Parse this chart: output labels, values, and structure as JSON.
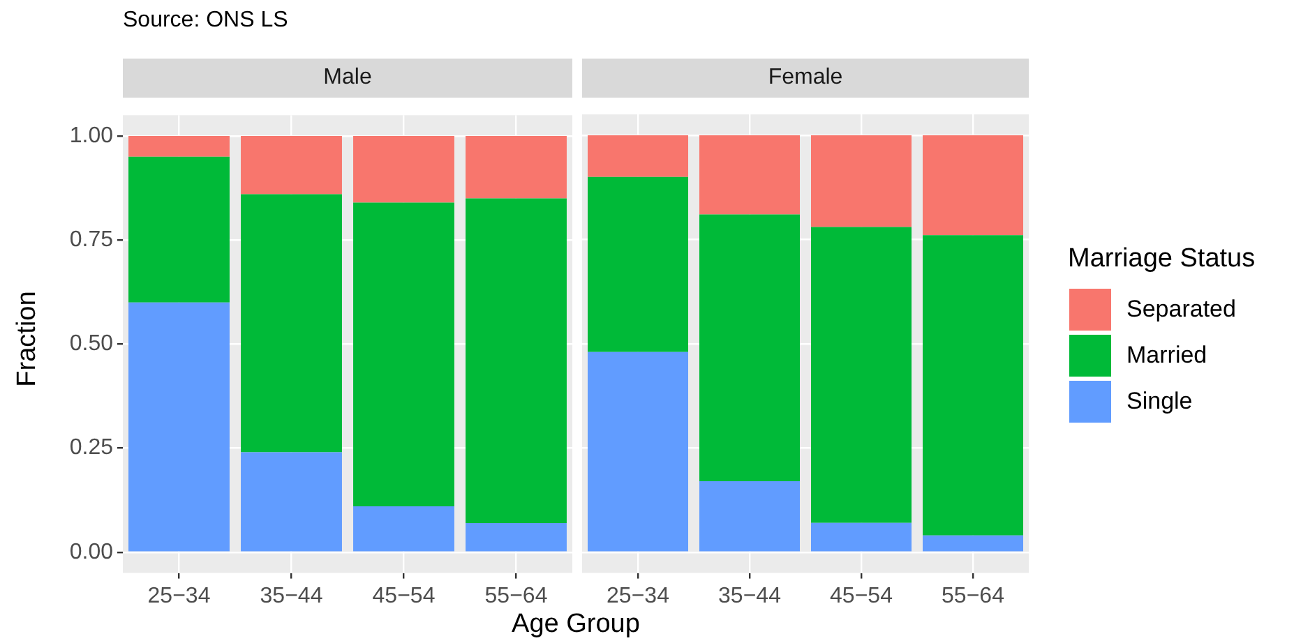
{
  "chart_data": [
    {
      "type": "bar",
      "title": "Male",
      "xlabel": "Age Group",
      "ylabel": "Fraction",
      "annotations": [
        "Source: ONS LS"
      ],
      "categories": [
        "25−34",
        "35−44",
        "45−54",
        "55−64"
      ],
      "stacked": true,
      "grid": true,
      "legend": false,
      "ylim": [
        -0.05,
        1.05
      ],
      "yticks": [
        {
          "value": 0,
          "label": "0.00"
        },
        {
          "value": 0.25,
          "label": "0.25"
        },
        {
          "value": 0.5,
          "label": "0.50"
        },
        {
          "value": 0.75,
          "label": "0.75"
        },
        {
          "value": 1,
          "label": "1.00"
        }
      ],
      "series": [
        {
          "color": "#619cff",
          "values": [
            0.6,
            0.24,
            0.11,
            0.07
          ]
        },
        {
          "color": "#00ba38",
          "values": [
            0.35,
            0.62,
            0.73,
            0.78
          ]
        },
        {
          "color": "#f8766d",
          "values": [
            0.05,
            0.14,
            0.16,
            0.15
          ]
        }
      ]
    },
    {
      "type": "bar",
      "title": "Female",
      "legend_title": "Marriage Status",
      "categories": [
        "25−34",
        "35−44",
        "45−54",
        "55−64"
      ],
      "stacked": true,
      "grid": true,
      "legend": "right",
      "tick_labels": "x",
      "ylim": [
        -0.05,
        1.05
      ],
      "yticks": [
        {
          "value": 0,
          "label": null
        },
        {
          "value": 0.25,
          "label": null
        },
        {
          "value": 0.5,
          "label": null
        },
        {
          "value": 0.75,
          "label": null
        },
        {
          "value": 1,
          "label": null
        }
      ],
      "series": [
        {
          "name": "Single",
          "color": "#619cff",
          "values": [
            0.48,
            0.17,
            0.07,
            0.04
          ]
        },
        {
          "name": "Married",
          "color": "#00ba38",
          "values": [
            0.42,
            0.64,
            0.71,
            0.72
          ]
        },
        {
          "name": "Separated",
          "color": "#f8766d",
          "values": [
            0.1,
            0.19,
            0.22,
            0.24
          ]
        }
      ]
    }
  ]
}
